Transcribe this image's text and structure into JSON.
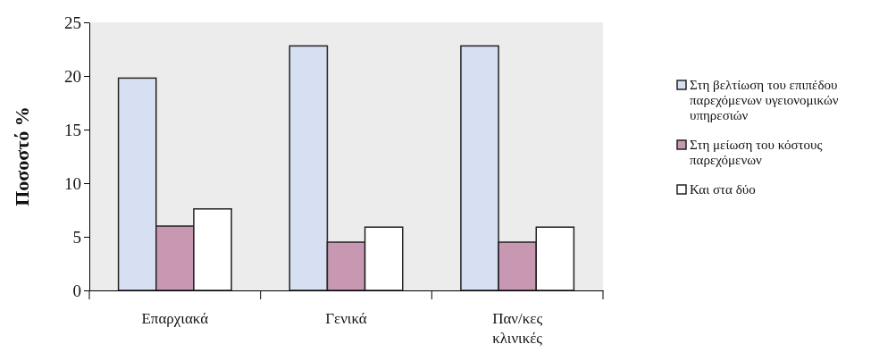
{
  "chart_data": {
    "type": "bar",
    "ylabel": "Ποσοστό %",
    "categories": [
      "Επαρχιακά",
      "Γενικά",
      "Παν/κες κλινικές"
    ],
    "series": [
      {
        "name": "Στη βελτίωση του επιπέδου παρεχόμενων υγειονομικών υπηρεσιών",
        "color": "#d6e0f2",
        "values": [
          19.8,
          22.8,
          22.8
        ]
      },
      {
        "name": "Στη μείωση του κόστους παρεχόμενων",
        "color": "#c898b2",
        "values": [
          6.0,
          4.5,
          4.5
        ]
      },
      {
        "name": "Και στα δύο",
        "color": "#ffffff",
        "values": [
          7.6,
          5.9,
          5.9
        ]
      }
    ],
    "ylim": [
      0,
      25
    ],
    "yticks": [
      0,
      5,
      10,
      15,
      20,
      25
    ],
    "legend": "right"
  }
}
